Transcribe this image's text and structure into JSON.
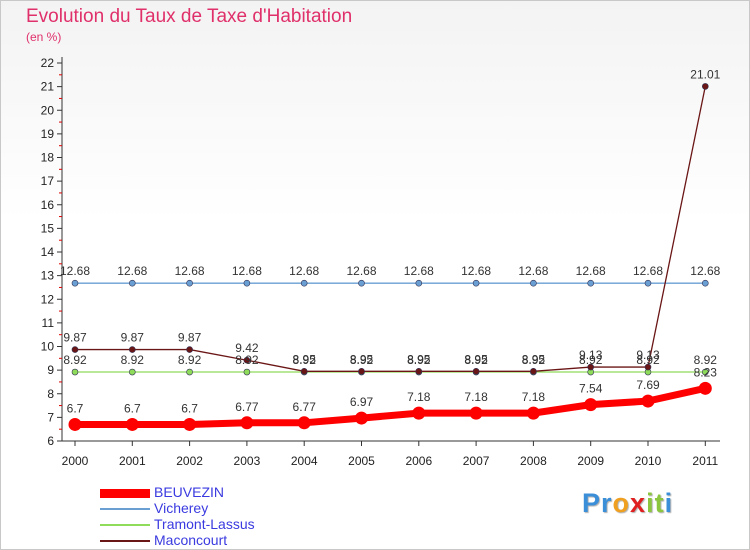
{
  "chart_data": {
    "type": "line",
    "title": "Evolution du Taux de Taxe d'Habitation",
    "subtitle": "(en %)",
    "xlabel": "",
    "ylabel": "(en %)",
    "categories": [
      "2000",
      "2001",
      "2002",
      "2003",
      "2004",
      "2005",
      "2006",
      "2007",
      "2008",
      "2009",
      "2010",
      "2011"
    ],
    "ylim": [
      6,
      22
    ],
    "yticks": [
      "6",
      "7",
      "8",
      "9",
      "10",
      "11",
      "12",
      "13",
      "14",
      "15",
      "16",
      "17",
      "18",
      "19",
      "20",
      "21",
      "22"
    ],
    "series": [
      {
        "name": "BEUVEZIN",
        "color": "#ff0000",
        "values": [
          6.7,
          6.7,
          6.7,
          6.77,
          6.77,
          6.97,
          7.18,
          7.18,
          7.18,
          7.54,
          7.69,
          8.23
        ],
        "labels": [
          "6.7",
          "6.7",
          "6.7",
          "6.77",
          "6.77",
          "6.97",
          "7.18",
          "7.18",
          "7.18",
          "7.54",
          "7.69",
          "8.23"
        ]
      },
      {
        "name": "Vicherey",
        "color": "#6a9fd4",
        "values": [
          12.68,
          12.68,
          12.68,
          12.68,
          12.68,
          12.68,
          12.68,
          12.68,
          12.68,
          12.68,
          12.68,
          12.68
        ],
        "labels": [
          "12.68",
          "12.68",
          "12.68",
          "12.68",
          "12.68",
          "12.68",
          "12.68",
          "12.68",
          "12.68",
          "12.68",
          "12.68",
          "12.68"
        ]
      },
      {
        "name": "Tramont-Lassus",
        "color": "#8fdc5a",
        "values": [
          8.92,
          8.92,
          8.92,
          8.92,
          8.92,
          8.92,
          8.92,
          8.92,
          8.92,
          8.92,
          8.92,
          8.92
        ],
        "labels": [
          "8.92",
          "8.92",
          "8.92",
          "8.92",
          "8.92",
          "8.92",
          "8.92",
          "8.92",
          "8.92",
          "8.92",
          "8.92",
          "8.92"
        ]
      },
      {
        "name": "Maconcourt",
        "color": "#6b1616",
        "values": [
          9.87,
          9.87,
          9.87,
          9.42,
          8.95,
          8.95,
          8.95,
          8.95,
          8.95,
          9.13,
          9.13,
          21.01
        ],
        "labels": [
          "9.87",
          "9.87",
          "9.87",
          "9.42",
          "8.95",
          "8.95",
          "8.95",
          "8.95",
          "8.95",
          "9.13",
          "9.13",
          "21.01"
        ]
      }
    ],
    "legend": "bottom-left",
    "grid": false
  },
  "brand": {
    "name": "Proxiti",
    "letters": [
      {
        "ch": "P",
        "color": "#3b8fd8"
      },
      {
        "ch": "r",
        "color": "#3b8fd8"
      },
      {
        "ch": "o",
        "color": "#f0a020"
      },
      {
        "ch": "x",
        "color": "#e02020"
      },
      {
        "ch": "i",
        "color": "#8cc63f"
      },
      {
        "ch": "t",
        "color": "#8cc63f"
      },
      {
        "ch": "i",
        "color": "#3b8fd8"
      }
    ]
  }
}
